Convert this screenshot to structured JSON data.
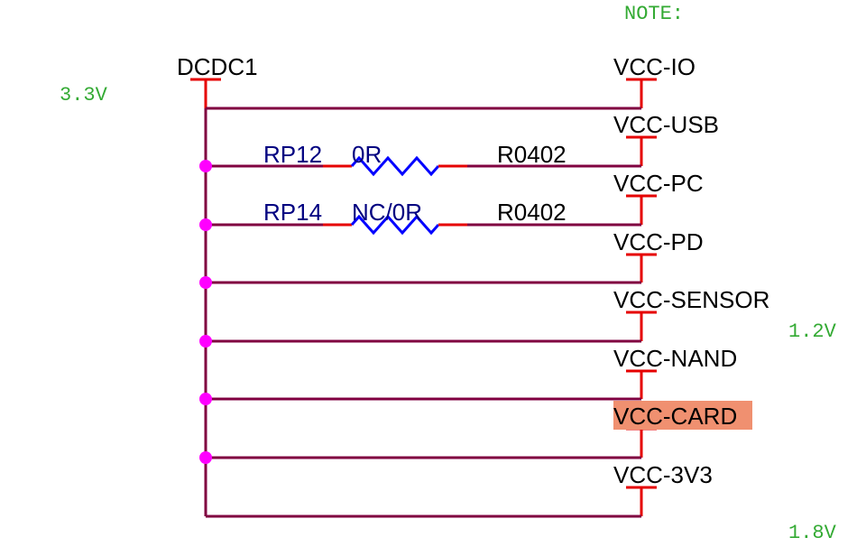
{
  "note": "NOTE:",
  "source": {
    "net": "DCDC1",
    "voltage": "3.3V"
  },
  "voltages": {
    "v12": "1.2V",
    "v18": "1.8V"
  },
  "resistors": [
    {
      "refdes": "RP12",
      "value": "0R",
      "footprint": "R0402"
    },
    {
      "refdes": "RP14",
      "value": "NC/0R",
      "footprint": "R0402"
    }
  ],
  "nets": [
    "VCC-IO",
    "VCC-USB",
    "VCC-PC",
    "VCC-PD",
    "VCC-SENSOR",
    "VCC-NAND",
    "VCC-CARD",
    "VCC-3V3"
  ],
  "highlighted_net": "VCC-CARD",
  "colors": {
    "wire": "#800040",
    "pin": "#e60000",
    "resistor": "#0000ff",
    "junction": "#ff00ff",
    "note": "#33aa33",
    "ref_text": "#000080",
    "highlight": "#f09070"
  }
}
